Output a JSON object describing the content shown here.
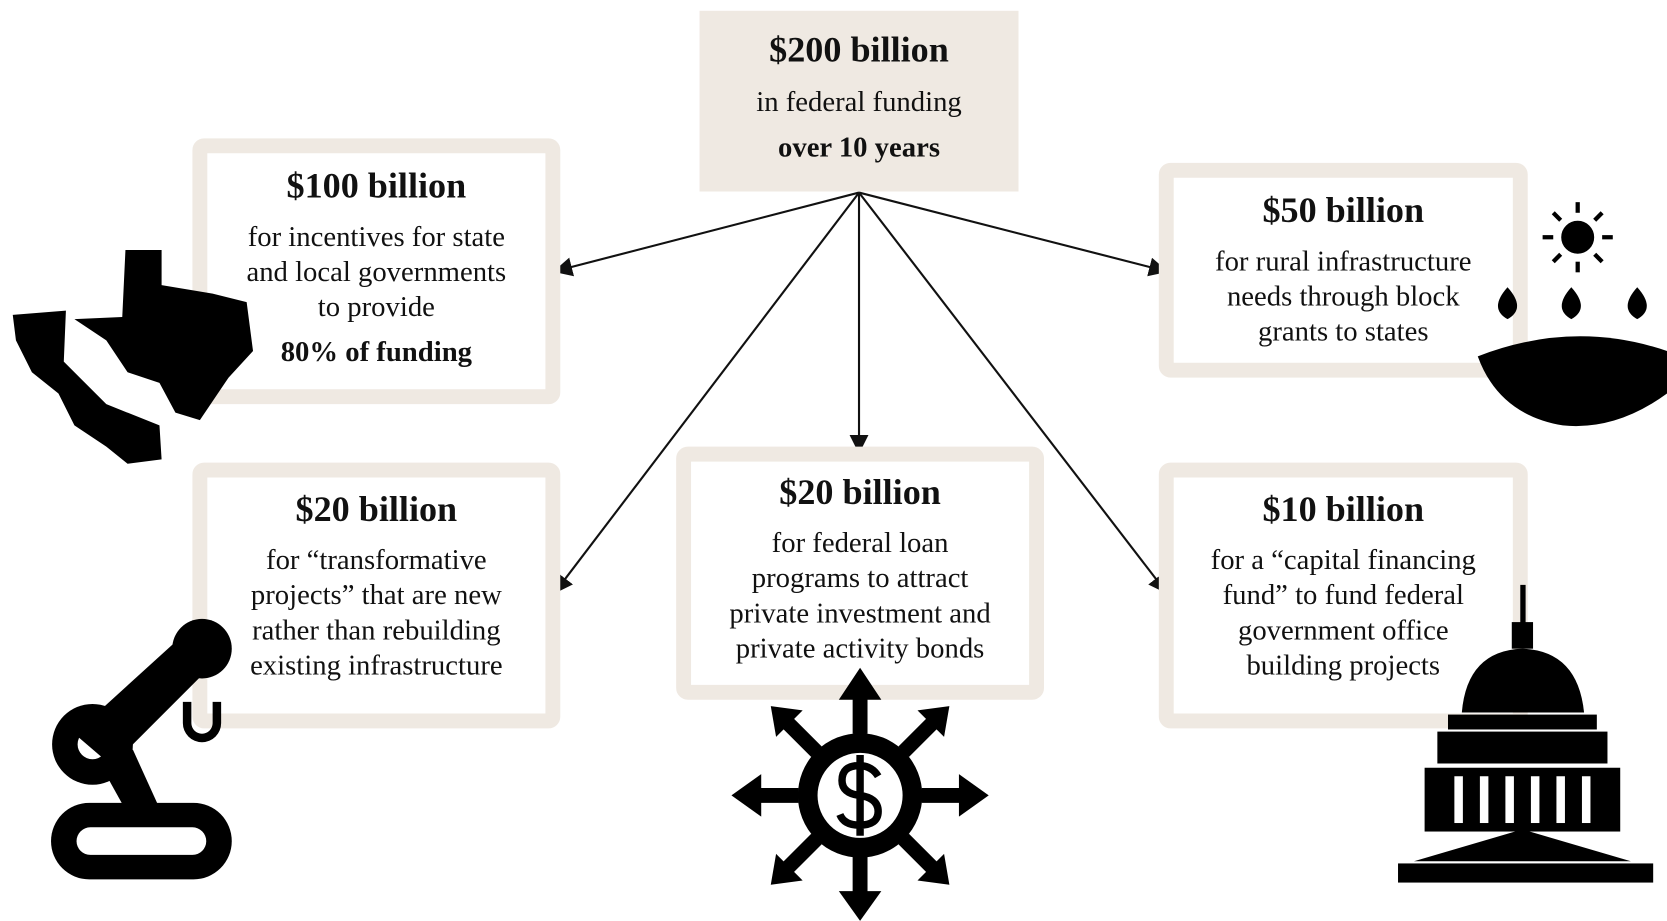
{
  "root": {
    "amount": "$200 billion",
    "lines": [
      "in federal funding"
    ],
    "highlight": "over 10 years"
  },
  "nodes": [
    {
      "amount": "$100 billion",
      "lines": [
        "for incentives for state",
        "and local governments",
        "to provide"
      ],
      "highlight": "80% of funding"
    },
    {
      "amount": "$50 billion",
      "lines": [
        "for rural infrastructure",
        "needs through block",
        "grants to states"
      ]
    },
    {
      "amount": "$20 billion",
      "lines": [
        "for “transformative",
        "projects” that are new",
        "rather than rebuilding",
        "existing infrastructure"
      ]
    },
    {
      "amount": "$20 billion",
      "lines": [
        "for federal loan",
        "programs to attract",
        "private investment and",
        "private activity bonds"
      ]
    },
    {
      "amount": "$10 billion",
      "lines": [
        "for a “capital financing",
        "fund” to fund federal",
        "government office",
        "building projects"
      ]
    }
  ]
}
